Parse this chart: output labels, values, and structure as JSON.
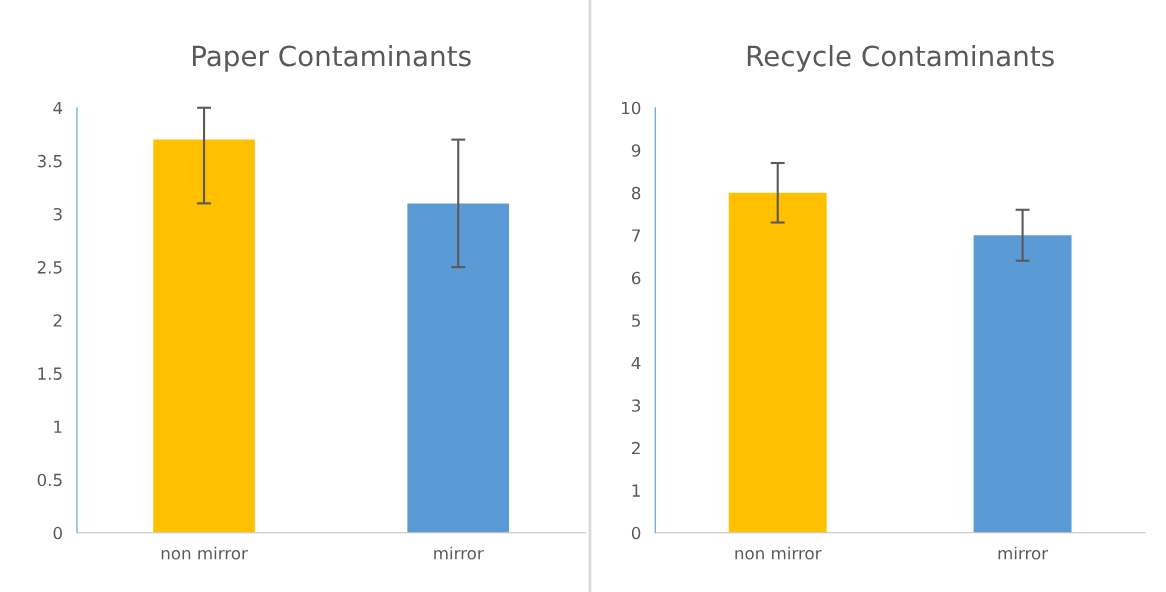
{
  "chart_data": [
    {
      "type": "bar",
      "title": "Paper Contaminants",
      "categories": [
        "non mirror",
        "mirror"
      ],
      "values": [
        3.7,
        3.1
      ],
      "colors": [
        "#ffc000",
        "#5b9bd5"
      ],
      "errors": [
        [
          3.1,
          4.0
        ],
        0.6
      ],
      "ylim": [
        0,
        4
      ],
      "yticks": [
        0,
        0.5,
        1,
        1.5,
        2,
        2.5,
        3,
        3.5,
        4
      ],
      "grid": false,
      "legend": false
    },
    {
      "type": "bar",
      "title": "Recycle Contaminants",
      "categories": [
        "non mirror",
        "mirror"
      ],
      "values": [
        8.0,
        7.0
      ],
      "colors": [
        "#ffc000",
        "#5b9bd5"
      ],
      "errors": [
        0.7,
        0.6
      ],
      "ylim": [
        0,
        10
      ],
      "yticks": [
        0,
        1,
        2,
        3,
        4,
        5,
        6,
        7,
        8,
        9,
        10
      ],
      "grid": false,
      "legend": false
    }
  ]
}
